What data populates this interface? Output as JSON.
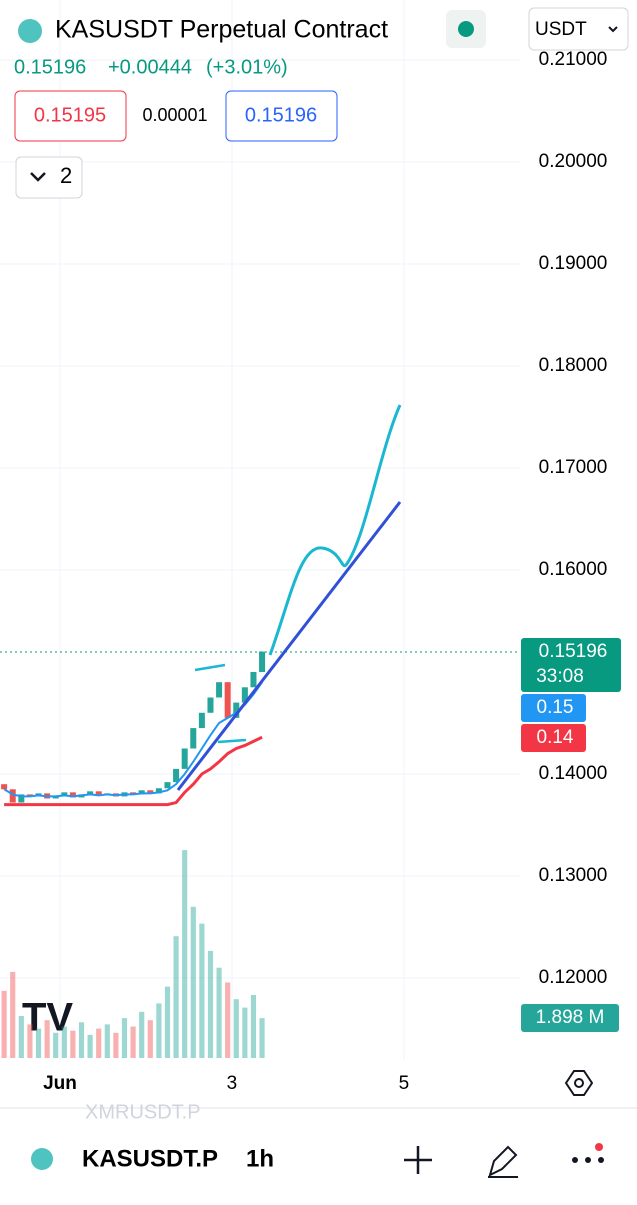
{
  "header": {
    "title": "KASUSDT Perpetual Contract",
    "currency": "USDT"
  },
  "quote": {
    "last": "0.15196",
    "change": "+0.00444",
    "change_pct": "(+3.01%)"
  },
  "order": {
    "bid": "0.15195",
    "spread": "0.00001",
    "ask": "0.15196"
  },
  "indicators_count": "2",
  "chart": {
    "ylim": [
      0.11196,
      0.21588
    ],
    "xlim": [
      0.302,
      6.35
    ],
    "yticks": [
      {
        "value": 0.21,
        "label": "0.21000"
      },
      {
        "value": 0.2,
        "label": "0.20000"
      },
      {
        "value": 0.19,
        "label": "0.19000"
      },
      {
        "value": 0.18,
        "label": "0.18000"
      },
      {
        "value": 0.17,
        "label": "0.17000"
      },
      {
        "value": 0.16,
        "label": "0.16000"
      },
      {
        "value": 0.14,
        "label": "0.14000"
      },
      {
        "value": 0.13,
        "label": "0.13000"
      },
      {
        "value": 0.12,
        "label": "0.12000"
      }
    ],
    "xticks": [
      {
        "value": 1,
        "label": "Jun"
      },
      {
        "value": 3,
        "label": "3"
      },
      {
        "value": 5,
        "label": "5"
      }
    ],
    "x": [
      0.35,
      0.45,
      0.55,
      0.65,
      0.75,
      0.85,
      0.95,
      1.05,
      1.15,
      1.25,
      1.35,
      1.45,
      1.55,
      1.65,
      1.75,
      1.85,
      1.95,
      2.05,
      2.15,
      2.25,
      2.35,
      2.45,
      2.55,
      2.65,
      2.75,
      2.85,
      2.95,
      3.05,
      3.15,
      3.25,
      3.35
    ],
    "open": [
      0.139,
      0.1385,
      0.1372,
      0.138,
      0.1378,
      0.1381,
      0.1376,
      0.1379,
      0.1382,
      0.1377,
      0.138,
      0.1383,
      0.1379,
      0.1381,
      0.1378,
      0.1382,
      0.138,
      0.1384,
      0.1381,
      0.1386,
      0.1392,
      0.1405,
      0.1425,
      0.1445,
      0.146,
      0.1475,
      0.149,
      0.1455,
      0.147,
      0.1485,
      0.15
    ],
    "close": [
      0.1385,
      0.1372,
      0.138,
      0.1378,
      0.1381,
      0.1376,
      0.1379,
      0.1382,
      0.1377,
      0.138,
      0.1383,
      0.1379,
      0.1381,
      0.1378,
      0.1382,
      0.138,
      0.1384,
      0.1381,
      0.1386,
      0.1392,
      0.1405,
      0.1425,
      0.1445,
      0.146,
      0.1475,
      0.149,
      0.1455,
      0.147,
      0.1485,
      0.15,
      0.152
    ],
    "volume": [
      3.2,
      4.1,
      2.0,
      1.6,
      1.4,
      1.8,
      1.2,
      1.5,
      1.3,
      1.7,
      1.1,
      1.4,
      1.6,
      1.2,
      1.9,
      1.5,
      2.2,
      1.8,
      2.6,
      3.4,
      5.8,
      9.9,
      7.2,
      6.4,
      5.1,
      4.3,
      3.6,
      2.8,
      2.4,
      3.0,
      1.898
    ],
    "ma_red": [
      0.137,
      0.137,
      0.137,
      0.137,
      0.137,
      0.137,
      0.137,
      0.137,
      0.137,
      0.137,
      0.137,
      0.137,
      0.137,
      0.137,
      0.137,
      0.137,
      0.137,
      0.137,
      0.137,
      0.137,
      0.1372,
      0.1382,
      0.139,
      0.14,
      0.1405,
      0.1412,
      0.142,
      0.1425,
      0.1428,
      0.1432,
      0.1436
    ],
    "ma_blue": [
      0.1385,
      0.138,
      0.1378,
      0.1378,
      0.1379,
      0.1378,
      0.1378,
      0.1379,
      0.1378,
      0.1379,
      0.138,
      0.1379,
      0.138,
      0.1379,
      0.138,
      0.138,
      0.1381,
      0.1381,
      0.1382,
      0.1384,
      0.139,
      0.14,
      0.1412,
      0.1425,
      0.1438,
      0.145,
      0.1455,
      0.146,
      0.1468,
      0.1478,
      0.149
    ],
    "last_price": 0.15196,
    "last_label": "0.15196",
    "countdown": "33:08",
    "blue_label": "0.15",
    "red_label": "0.14",
    "volume_label": "1.898 M"
  },
  "ghost_symbol": "XMRUSDT.P",
  "footer": {
    "symbol": "KASUSDT.P",
    "interval": "1h"
  }
}
